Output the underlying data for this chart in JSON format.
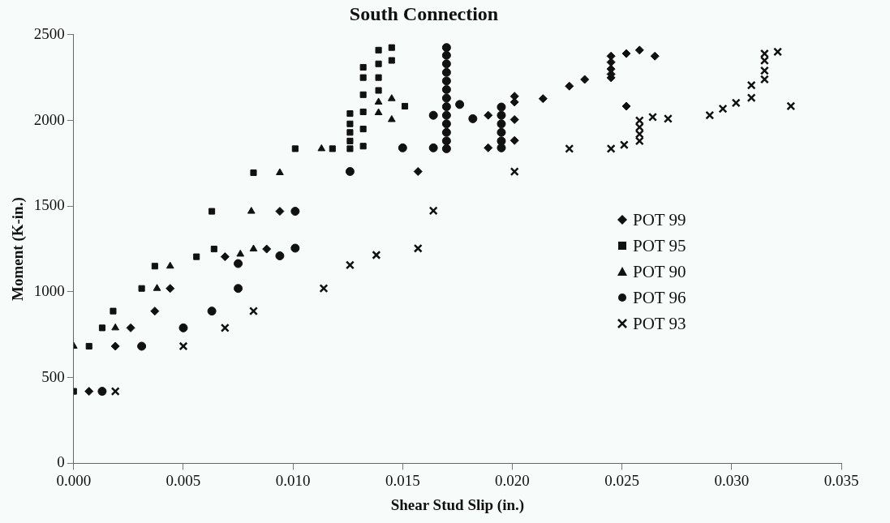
{
  "chart_data": {
    "type": "scatter",
    "title": "South Connection",
    "xlabel": "Shear Stud Slip (in.)",
    "ylabel": "Moment (K-in.)",
    "xlim": [
      0,
      0.035
    ],
    "xticks": [
      {
        "value": 0,
        "label": "0.000"
      },
      {
        "value": 0.005,
        "label": "0.005"
      },
      {
        "value": 0.01,
        "label": "0.010"
      },
      {
        "value": 0.015,
        "label": "0.015"
      },
      {
        "value": 0.02,
        "label": "0.020"
      },
      {
        "value": 0.025,
        "label": "0.025"
      },
      {
        "value": 0.03,
        "label": "0.030"
      },
      {
        "value": 0.035,
        "label": "0.035"
      }
    ],
    "ylim": [
      0,
      2500
    ],
    "yticks": [
      0,
      500,
      1000,
      1500,
      2000,
      2500
    ],
    "grid": false,
    "legend": "right",
    "series": [
      {
        "name": "POT 99",
        "color": "#111111",
        "marker": "diamond",
        "x": [
          0.0007,
          0.0019,
          0.0026,
          0.0037,
          0.0044,
          0.0069,
          0.0088,
          0.0094,
          0.0157,
          0.0189,
          0.0189,
          0.0201,
          0.0201,
          0.0201,
          0.0201,
          0.0214,
          0.0226,
          0.0233,
          0.0245,
          0.0245,
          0.0245,
          0.0245,
          0.0245,
          0.0252,
          0.0258,
          0.0265,
          0.0252
        ],
        "values": [
          420,
          683,
          790,
          888,
          1020,
          1205,
          1250,
          1470,
          1702,
          1840,
          2030,
          2141,
          2107,
          2005,
          1883,
          2127,
          2200,
          2239,
          2249,
          2270,
          2300,
          2340,
          2375,
          2390,
          2410,
          2375,
          2083
        ]
      },
      {
        "name": "POT 95",
        "color": "#111111",
        "marker": "square",
        "x": [
          0,
          0.0007,
          0.0013,
          0.0018,
          0.0031,
          0.0037,
          0.0056,
          0.0064,
          0.0063,
          0.0082,
          0.0101,
          0.0118,
          0.0126,
          0.0126,
          0.0126,
          0.0126,
          0.0126,
          0.0132,
          0.0132,
          0.0132,
          0.0132,
          0.0132,
          0.0132,
          0.0139,
          0.0139,
          0.0139,
          0.0139,
          0.0145,
          0.0145,
          0.0151
        ],
        "values": [
          420,
          683,
          790,
          888,
          1020,
          1150,
          1205,
          1250,
          1470,
          1695,
          1835,
          1835,
          1835,
          1880,
          1930,
          1980,
          2040,
          1850,
          1950,
          2050,
          2150,
          2250,
          2310,
          2175,
          2250,
          2330,
          2410,
          2425,
          2350,
          2083
        ]
      },
      {
        "name": "POT 90",
        "color": "#111111",
        "marker": "triangle",
        "x": [
          0,
          0.0019,
          0.0038,
          0.0044,
          0.0076,
          0.0082,
          0.0081,
          0.0094,
          0.0113,
          0.0139,
          0.0139,
          0.0145,
          0.0145
        ],
        "values": [
          683,
          790,
          1020,
          1150,
          1220,
          1250,
          1470,
          1695,
          1835,
          2107,
          2045,
          2127,
          2005
        ]
      },
      {
        "name": "POT 96",
        "color": "#111111",
        "marker": "circle",
        "x": [
          0.0013,
          0.0031,
          0.005,
          0.0063,
          0.0075,
          0.0075,
          0.0094,
          0.0101,
          0.0101,
          0.0126,
          0.015,
          0.0164,
          0.0164,
          0.017,
          0.017,
          0.017,
          0.017,
          0.017,
          0.017,
          0.017,
          0.017,
          0.017,
          0.017,
          0.017,
          0.017,
          0.017,
          0.0176,
          0.0182,
          0.0195,
          0.0195,
          0.0195,
          0.0195,
          0.0195,
          0.0195
        ],
        "values": [
          420,
          683,
          790,
          888,
          1020,
          1165,
          1210,
          1255,
          1470,
          1702,
          1840,
          1840,
          2030,
          1835,
          1880,
          1930,
          1980,
          2030,
          2080,
          2130,
          2180,
          2230,
          2280,
          2330,
          2380,
          2425,
          2093,
          2010,
          1840,
          1880,
          1930,
          1980,
          2030,
          2078
        ]
      },
      {
        "name": "POT 93",
        "color": "#111111",
        "marker": "cross",
        "x": [
          0.0019,
          0.005,
          0.0069,
          0.0082,
          0.0114,
          0.0126,
          0.0138,
          0.0157,
          0.0164,
          0.0201,
          0.0226,
          0.0245,
          0.0251,
          0.0258,
          0.0258,
          0.0258,
          0.0258,
          0.0264,
          0.0271,
          0.029,
          0.0296,
          0.0302,
          0.0309,
          0.0309,
          0.0315,
          0.0315,
          0.0315,
          0.0315,
          0.0321,
          0.0327
        ],
        "values": [
          420,
          683,
          790,
          888,
          1020,
          1156,
          1215,
          1254,
          1473,
          1702,
          1835,
          1835,
          1858,
          1880,
          1920,
          1960,
          2000,
          2020,
          2010,
          2030,
          2068,
          2102,
          2132,
          2205,
          2240,
          2290,
          2350,
          2390,
          2400,
          2083
        ]
      }
    ]
  }
}
